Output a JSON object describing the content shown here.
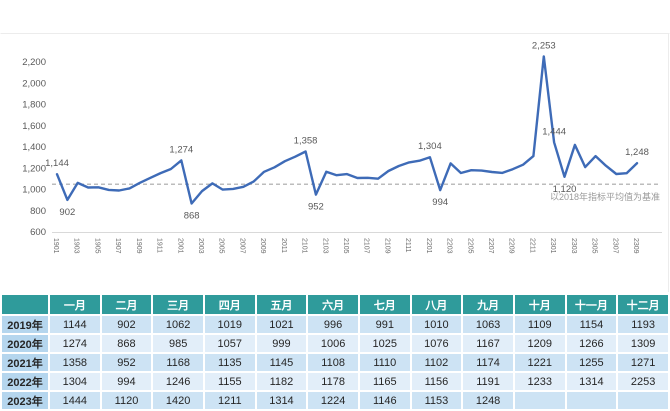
{
  "chart_data": {
    "type": "line",
    "title": "",
    "xlabel": "",
    "ylabel": "",
    "legend": "none",
    "grid": false,
    "ylim": [
      600,
      2300
    ],
    "y_tick_values": [
      600,
      800,
      1000,
      1200,
      1400,
      1600,
      1800,
      2000,
      2200
    ],
    "y_tick_labels": [
      "600",
      "800",
      "1,000",
      "1,200",
      "1,400",
      "1,600",
      "1,800",
      "2,000",
      "2,200"
    ],
    "x": [
      "1901",
      "1902",
      "1903",
      "1904",
      "1905",
      "1906",
      "1907",
      "1908",
      "1909",
      "1910",
      "1911",
      "1912",
      "2001",
      "2002",
      "2003",
      "2004",
      "2005",
      "2006",
      "2007",
      "2008",
      "2009",
      "2010",
      "2011",
      "2012",
      "2101",
      "2102",
      "2103",
      "2104",
      "2105",
      "2106",
      "2107",
      "2108",
      "2109",
      "2110",
      "2111",
      "2112",
      "2201",
      "2202",
      "2203",
      "2204",
      "2205",
      "2206",
      "2207",
      "2208",
      "2209",
      "2210",
      "2211",
      "2212",
      "2301",
      "2302",
      "2303",
      "2304",
      "2305",
      "2306",
      "2307",
      "2308",
      "2309"
    ],
    "x_ticks_shown_every": 2,
    "series": [
      {
        "name": "monthly-index",
        "values": [
          1144,
          902,
          1062,
          1019,
          1021,
          996,
          991,
          1010,
          1063,
          1109,
          1154,
          1193,
          1274,
          868,
          985,
          1057,
          999,
          1006,
          1025,
          1076,
          1167,
          1209,
          1266,
          1309,
          1358,
          952,
          1168,
          1135,
          1145,
          1108,
          1110,
          1102,
          1174,
          1221,
          1255,
          1271,
          1304,
          994,
          1246,
          1155,
          1182,
          1178,
          1165,
          1156,
          1191,
          1233,
          1314,
          2253,
          1444,
          1120,
          1420,
          1211,
          1314,
          1224,
          1146,
          1153,
          1248
        ]
      }
    ],
    "baseline": {
      "value": 1050,
      "label": "以2018年指标平均值为基准"
    },
    "annotations": [
      {
        "index": 0,
        "text": "1,144",
        "placement": "above"
      },
      {
        "index": 1,
        "text": "902",
        "placement": "below"
      },
      {
        "index": 12,
        "text": "1,274",
        "placement": "above"
      },
      {
        "index": 13,
        "text": "868",
        "placement": "below"
      },
      {
        "index": 24,
        "text": "1,358",
        "placement": "above"
      },
      {
        "index": 25,
        "text": "952",
        "placement": "below"
      },
      {
        "index": 36,
        "text": "1,304",
        "placement": "above"
      },
      {
        "index": 37,
        "text": "994",
        "placement": "below"
      },
      {
        "index": 47,
        "text": "2,253",
        "placement": "above"
      },
      {
        "index": 48,
        "text": "1,444",
        "placement": "above"
      },
      {
        "index": 49,
        "text": "1,120",
        "placement": "below"
      },
      {
        "index": 56,
        "text": "1,248",
        "placement": "above"
      }
    ]
  },
  "table": {
    "columns": [
      "",
      "一月",
      "二月",
      "三月",
      "四月",
      "五月",
      "六月",
      "七月",
      "八月",
      "九月",
      "十月",
      "十一月",
      "十二月"
    ],
    "rows": [
      {
        "label": "2019年",
        "values": [
          "1144",
          "902",
          "1062",
          "1019",
          "1021",
          "996",
          "991",
          "1010",
          "1063",
          "1109",
          "1154",
          "1193"
        ]
      },
      {
        "label": "2020年",
        "values": [
          "1274",
          "868",
          "985",
          "1057",
          "999",
          "1006",
          "1025",
          "1076",
          "1167",
          "1209",
          "1266",
          "1309"
        ]
      },
      {
        "label": "2021年",
        "values": [
          "1358",
          "952",
          "1168",
          "1135",
          "1145",
          "1108",
          "1110",
          "1102",
          "1174",
          "1221",
          "1255",
          "1271"
        ]
      },
      {
        "label": "2022年",
        "values": [
          "1304",
          "994",
          "1246",
          "1155",
          "1182",
          "1178",
          "1165",
          "1156",
          "1191",
          "1233",
          "1314",
          "2253"
        ]
      },
      {
        "label": "2023年",
        "values": [
          "1444",
          "1120",
          "1420",
          "1211",
          "1314",
          "1224",
          "1146",
          "1153",
          "1248",
          "",
          "",
          ""
        ]
      }
    ]
  },
  "colors": {
    "line": "#3E6BB7",
    "baseline_line": "#A6A6A6",
    "baseline_text": "#9A9A9A",
    "axis_text": "#595959",
    "x_tick_text": "#6E6E6E",
    "annotation_text": "#595959",
    "axis_line": "#D9D9D9",
    "chart_border": "#ECECEC",
    "table_header_bg": "#2F9B9B",
    "table_header_text": "#FFFFFF",
    "year_col_bg": "#B5D6EE",
    "row_stripe_a": "#CDE3F4",
    "row_stripe_b": "#E2EEF9",
    "cell_text": "#262626"
  }
}
